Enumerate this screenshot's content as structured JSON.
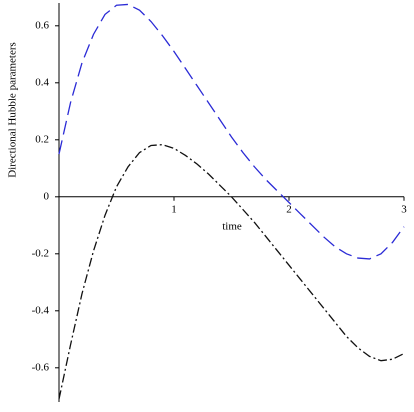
{
  "chart_data": {
    "type": "line",
    "x_label": "time",
    "y_label": "Directional Hubble parameters",
    "x": [
      0,
      0.1,
      0.2,
      0.3,
      0.4,
      0.5,
      0.6,
      0.7,
      0.8,
      0.9,
      1.0,
      1.1,
      1.2,
      1.3,
      1.4,
      1.5,
      1.6,
      1.7,
      1.8,
      1.9,
      2.0,
      2.1,
      2.2,
      2.3,
      2.4,
      2.5,
      2.6,
      2.7,
      2.8,
      2.9,
      3.0
    ],
    "series": [
      {
        "color": "#2b2bd6",
        "dash": "14 6",
        "values": [
          0.15,
          0.33,
          0.47,
          0.57,
          0.64,
          0.672,
          0.675,
          0.655,
          0.615,
          0.565,
          0.51,
          0.45,
          0.39,
          0.33,
          0.27,
          0.21,
          0.155,
          0.105,
          0.06,
          0.02,
          -0.02,
          -0.06,
          -0.1,
          -0.14,
          -0.175,
          -0.2,
          -0.215,
          -0.218,
          -0.2,
          -0.16,
          -0.105
        ]
      },
      {
        "color": "#111111",
        "dash": "9 3 2 3",
        "values": [
          -0.71,
          -0.52,
          -0.34,
          -0.19,
          -0.065,
          0.035,
          0.105,
          0.155,
          0.18,
          0.183,
          0.17,
          0.145,
          0.115,
          0.08,
          0.04,
          0.0,
          -0.045,
          -0.09,
          -0.14,
          -0.19,
          -0.24,
          -0.29,
          -0.34,
          -0.39,
          -0.44,
          -0.49,
          -0.53,
          -0.56,
          -0.575,
          -0.57,
          -0.55
        ]
      }
    ],
    "xlim": [
      0,
      3
    ],
    "ylim": [
      -0.72,
      0.68
    ],
    "xticks": [
      1,
      2,
      3
    ],
    "yticks": [
      -0.6,
      -0.4,
      -0.2,
      0,
      0.2,
      0.4,
      0.6
    ]
  }
}
